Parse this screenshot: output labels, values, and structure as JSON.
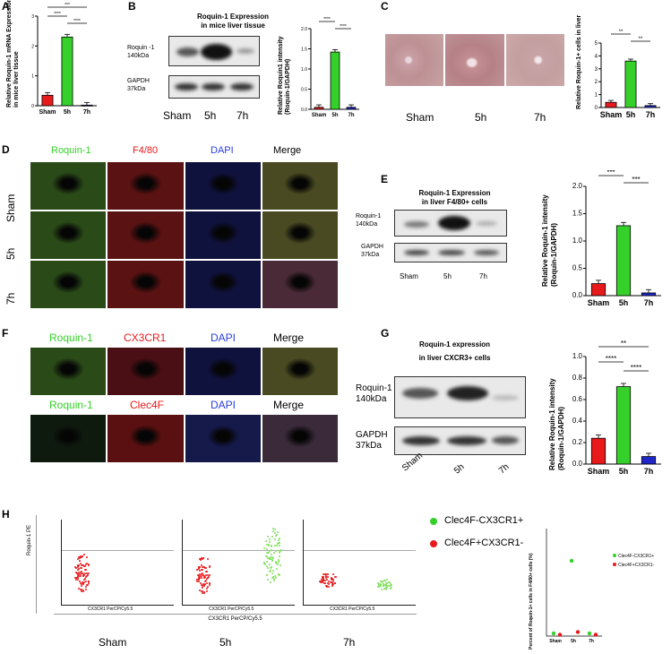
{
  "panels": {
    "A": {
      "label": "A",
      "ylabel": "Relative Roquin-1 mRNA Expression\nin mice liver tissue",
      "sig": [
        "***",
        "****",
        "****"
      ]
    },
    "B": {
      "label": "B",
      "title1": "Roquin-1 Expression",
      "title2": "in mice liver tissue",
      "roquin": "Roquin -1",
      "roquin_kda": "140kDa",
      "gapdh": "GAPDH",
      "gapdh_kda": "37kDa",
      "groups": [
        "Sham",
        "5h",
        "7h"
      ],
      "ylabel": "Relative Roquin1 intensity\n(Roquin-1/GAPDH)",
      "sig": [
        "****",
        "****"
      ]
    },
    "C": {
      "label": "C",
      "groups": [
        "Sham",
        "5h",
        "7h"
      ],
      "ylabel": "Relative Roquin-1+ cells in liver",
      "sig": [
        "**",
        "**"
      ]
    },
    "D": {
      "label": "D",
      "cols": [
        "Roquin-1",
        "F4/80",
        "DAPI",
        "Merge"
      ],
      "rows": [
        "Sham",
        "5h",
        "7h"
      ]
    },
    "E": {
      "label": "E",
      "title1": "Roquin-1 Expression",
      "title2": "in liver F4/80+ cells",
      "roquin": "Roquin-1",
      "roquin_kda": "140kDa",
      "gapdh": "GAPDH",
      "gapdh_kda": "37kDa",
      "groups": [
        "Sham",
        "5h",
        "7h"
      ],
      "ylabel": "Relative Roquin-1 intensity\n(Roquin-1/GAPDH)",
      "sig": [
        "***",
        "***"
      ]
    },
    "F": {
      "label": "F",
      "row1": [
        "Roquin-1",
        "CX3CR1",
        "DAPI",
        "Merge"
      ],
      "row2": [
        "Roquin-1",
        "Clec4F",
        "DAPI",
        "Merge"
      ]
    },
    "G": {
      "label": "G",
      "title1": "Roquin-1 expression",
      "title2": "in liver CXCR3+ cells",
      "roquin": "Roquin-1",
      "roquin_kda": "140kDa",
      "gapdh": "GAPDH",
      "gapdh_kda": "37kDa",
      "groups": [
        "Sham",
        "5h",
        "7h"
      ],
      "ylabel": "Relative Roquin-1 intensity\n(Roquin-1/GAPDH)",
      "sig": [
        "**",
        "****",
        "****"
      ]
    },
    "H": {
      "label": "H",
      "yaxis": "Roquin-1 PE",
      "xaxis": "CX3CR1 PerCP/Cy5.5",
      "xaxis_small": "CX3CR1 PerCP/Cy5.5",
      "groups": [
        "Sham",
        "5h",
        "7h"
      ],
      "legend": [
        "Clec4F-CX3CR1+",
        "Clec4F+CX3CR1-"
      ],
      "ylabel": "Percent of Roquin-1+ cells in F4/80+ cells (%)",
      "legend_small": [
        "Clec4F-CX3CR1+",
        "Clec4F+CX3CR1-"
      ]
    }
  },
  "colors": {
    "sham": "#e8191b",
    "h5": "#35d12a",
    "h7": "#1f27c7"
  },
  "chart_data": [
    {
      "type": "bar",
      "panel": "A",
      "categories": [
        "Sham",
        "5h",
        "7h"
      ],
      "values": [
        0.35,
        2.3,
        0.02
      ],
      "ylim": [
        0,
        3
      ],
      "yticks": [
        "0",
        "1",
        "2",
        "3"
      ]
    },
    {
      "type": "bar",
      "panel": "B",
      "categories": [
        "Sham",
        "5h",
        "7h"
      ],
      "values": [
        0.05,
        1.42,
        0.05
      ],
      "ylim": [
        0,
        2
      ],
      "yticks": [
        "0.0",
        "0.5",
        "1.0",
        "1.5",
        "2.0"
      ]
    },
    {
      "type": "bar",
      "panel": "C",
      "categories": [
        "Sham",
        "5h",
        "7h"
      ],
      "values": [
        0.4,
        3.6,
        0.15
      ],
      "ylim": [
        0,
        5
      ],
      "yticks": [
        "0",
        "1",
        "2",
        "3",
        "4",
        "5"
      ]
    },
    {
      "type": "bar",
      "panel": "E",
      "categories": [
        "Sham",
        "5h",
        "7h"
      ],
      "values": [
        0.22,
        1.28,
        0.05
      ],
      "ylim": [
        0,
        2
      ],
      "yticks": [
        "0.0",
        "0.5",
        "1.0",
        "1.5",
        "2.0"
      ]
    },
    {
      "type": "bar",
      "panel": "G",
      "categories": [
        "Sham",
        "5h",
        "7h"
      ],
      "values": [
        0.24,
        0.72,
        0.07
      ],
      "ylim": [
        0,
        1
      ],
      "yticks": [
        "0.0",
        "0.2",
        "0.4",
        "0.6",
        "0.8",
        "1.0"
      ]
    },
    {
      "type": "scatter",
      "panel": "H",
      "categories": [
        "Sham",
        "5h",
        "7h"
      ],
      "series": [
        {
          "name": "Clec4F-CX3CR1+",
          "values": [
            2,
            56,
            2
          ]
        },
        {
          "name": "Clec4F+CX3CR1-",
          "values": [
            1,
            3,
            1
          ]
        }
      ],
      "ylim": [
        0,
        80
      ]
    }
  ]
}
